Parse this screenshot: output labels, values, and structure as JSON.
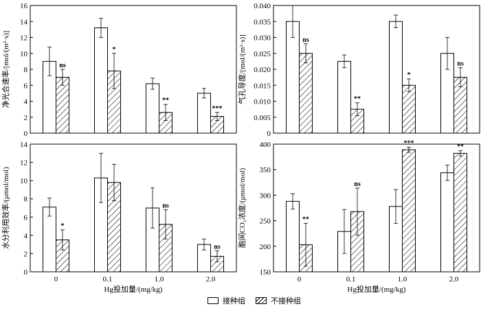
{
  "colors": {
    "bar_edge": "#000000",
    "inoc_fill": "#ffffff",
    "hatch_stroke": "#000000",
    "axis": "#000000"
  },
  "legend": {
    "inoculated": "接种组",
    "non_inoculated": "不接种组"
  },
  "chart_data": [
    {
      "type": "bar",
      "ylabel": "净光合速率/[mol/(m²·s)]",
      "xlabel": "",
      "categories": [
        "0",
        "0.1",
        "1.0",
        "2.0"
      ],
      "ylim": [
        0,
        16
      ],
      "yticks": [
        "0",
        "2",
        "4",
        "6",
        "8",
        "10",
        "12",
        "14",
        "16"
      ],
      "grid": false,
      "series": [
        {
          "name": "接种组",
          "values": [
            9.0,
            13.2,
            6.2,
            5.0
          ],
          "errors": [
            1.8,
            1.2,
            0.7,
            0.6
          ],
          "sig": [
            "",
            "",
            "",
            ""
          ]
        },
        {
          "name": "不接种组",
          "values": [
            7.0,
            7.8,
            2.6,
            2.1
          ],
          "errors": [
            1.0,
            2.2,
            1.0,
            0.5
          ],
          "sig": [
            "ns",
            "*",
            "**",
            "***"
          ]
        }
      ]
    },
    {
      "type": "bar",
      "ylabel": "气孔导度/[mol/(m²·s)]",
      "xlabel": "",
      "categories": [
        "0",
        "0.1",
        "1.0",
        "2.0"
      ],
      "ylim": [
        0,
        0.04
      ],
      "yticks": [
        "0",
        "0.005",
        "0.010",
        "0.015",
        "0.020",
        "0.025",
        "0.030",
        "0.035",
        "0.040"
      ],
      "grid": false,
      "series": [
        {
          "name": "接种组",
          "values": [
            0.035,
            0.0225,
            0.035,
            0.025
          ],
          "errors": [
            0.005,
            0.002,
            0.002,
            0.005
          ],
          "sig": [
            "",
            "",
            "",
            ""
          ]
        },
        {
          "name": "不接种组",
          "values": [
            0.025,
            0.0075,
            0.015,
            0.0175
          ],
          "errors": [
            0.003,
            0.002,
            0.002,
            0.003
          ],
          "sig": [
            "ns",
            "**",
            "*",
            "ns"
          ]
        }
      ]
    },
    {
      "type": "bar",
      "ylabel": "水分利用效率/(μmol/mol)",
      "xlabel": "Hg投加量/(mg/kg)",
      "categories": [
        "0",
        "0.1",
        "1.0",
        "2.0"
      ],
      "ylim": [
        0,
        14
      ],
      "yticks": [
        "0",
        "2",
        "4",
        "6",
        "8",
        "10",
        "12",
        "14"
      ],
      "grid": false,
      "series": [
        {
          "name": "接种组",
          "values": [
            7.1,
            10.3,
            7.0,
            3.0
          ],
          "errors": [
            1.0,
            2.7,
            2.2,
            0.6
          ],
          "sig": [
            "",
            "",
            "",
            ""
          ]
        },
        {
          "name": "不接种组",
          "values": [
            3.5,
            9.8,
            5.2,
            1.7
          ],
          "errors": [
            1.1,
            2.0,
            1.6,
            0.6
          ],
          "sig": [
            "*",
            "",
            "ns",
            "ns"
          ]
        }
      ]
    },
    {
      "type": "bar",
      "ylabel": "胞间CO₂浓度/(μmol/mol)",
      "xlabel": "Hg投加量/(mg/kg)",
      "categories": [
        "0",
        "0.1",
        "1.0",
        "2.0"
      ],
      "ylim": [
        150,
        400
      ],
      "yticks": [
        "150",
        "200",
        "250",
        "300",
        "350",
        "400"
      ],
      "grid": false,
      "series": [
        {
          "name": "接种组",
          "values": [
            288,
            229,
            278,
            344
          ],
          "errors": [
            15,
            43,
            33,
            15
          ],
          "sig": [
            "",
            "",
            "",
            ""
          ]
        },
        {
          "name": "不接种组",
          "values": [
            203,
            268,
            389,
            382
          ],
          "errors": [
            42,
            46,
            5,
            5
          ],
          "sig": [
            "**",
            "ns",
            "***",
            "**"
          ]
        }
      ]
    }
  ]
}
